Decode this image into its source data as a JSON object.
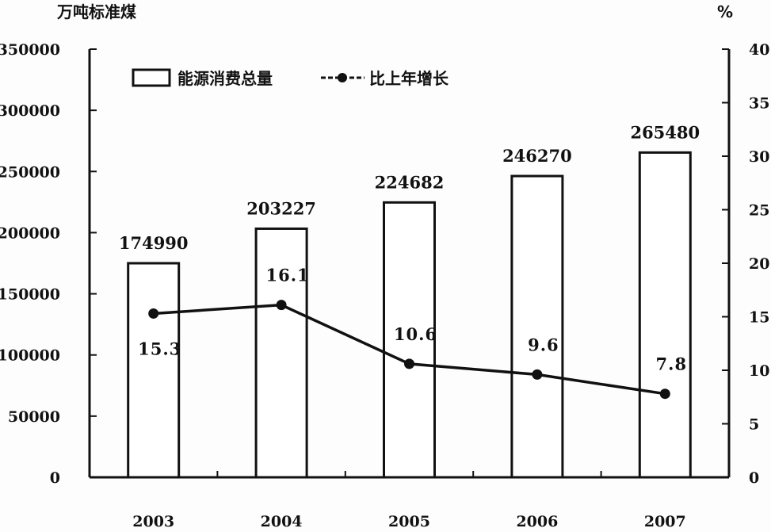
{
  "chart_data": {
    "type": "bar",
    "categories": [
      "2003",
      "2004",
      "2005",
      "2006",
      "2007"
    ],
    "series": [
      {
        "name": "能源消费总量",
        "type": "bar",
        "axis": "left",
        "values": [
          174990,
          203227,
          224682,
          246270,
          265480
        ],
        "labels": [
          "174990",
          "203227",
          "224682",
          "246270",
          "265480"
        ]
      },
      {
        "name": "比上年增长",
        "type": "line",
        "axis": "right",
        "values": [
          15.3,
          16.1,
          10.6,
          9.6,
          7.8
        ],
        "labels": [
          "15.3",
          "16.1",
          "10.6",
          "9.6",
          "7.8"
        ]
      }
    ],
    "ylabel": "万吨标准煤",
    "y2label": "%",
    "ylim": [
      0,
      350000
    ],
    "y2lim": [
      0,
      40
    ],
    "yticks": [
      "0",
      "50000",
      "100000",
      "150000",
      "200000",
      "250000",
      "300000",
      "350000"
    ],
    "y2ticks": [
      "0",
      "5",
      "10",
      "15",
      "20",
      "25",
      "30",
      "35",
      "40"
    ],
    "legend": "top-left",
    "grid": false
  }
}
